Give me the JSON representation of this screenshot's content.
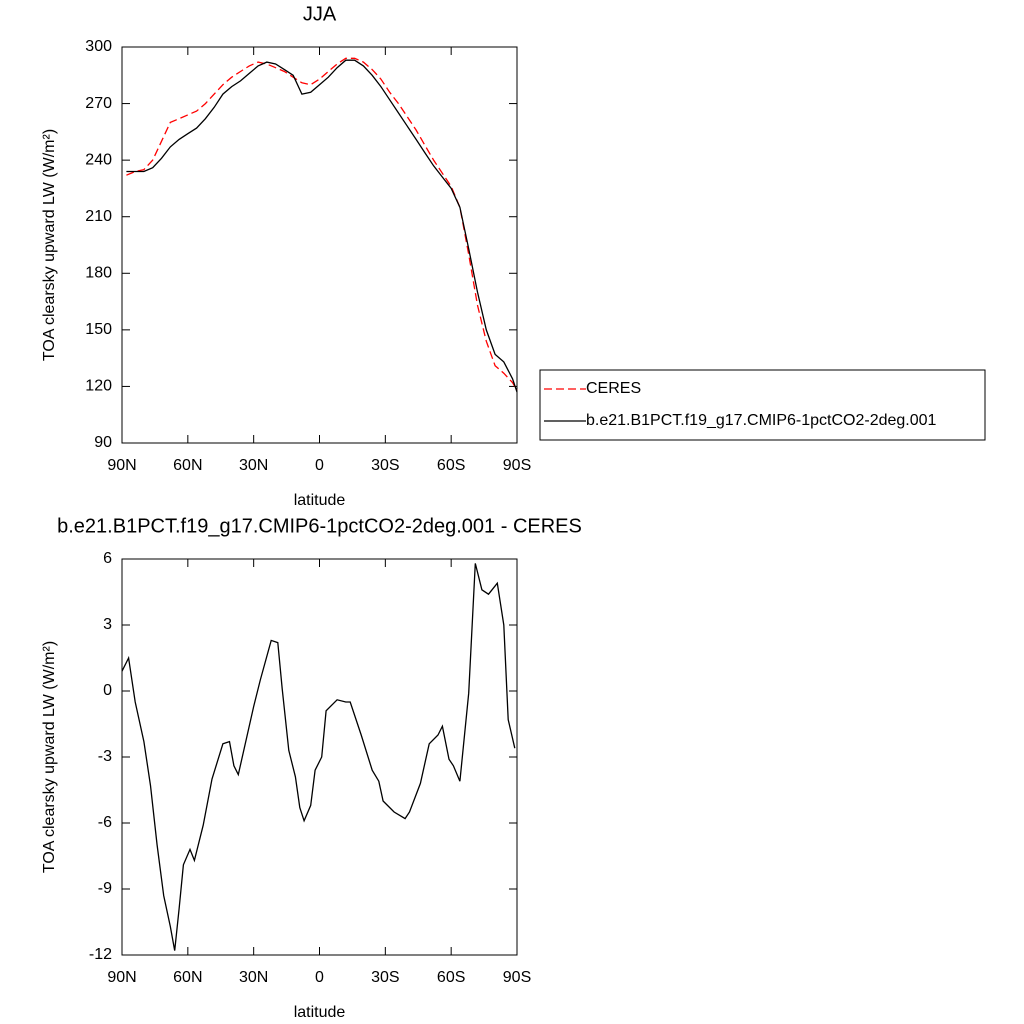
{
  "chart_data": [
    {
      "type": "line",
      "title": "JJA",
      "xlabel": "latitude",
      "ylabel": "TOA clearsky upward LW (W/m²)",
      "x": [
        88,
        84,
        80,
        76,
        72,
        68,
        64,
        60,
        56,
        52,
        48,
        44,
        40,
        36,
        32,
        28,
        24,
        20,
        16,
        12,
        8,
        4,
        0,
        -4,
        -8,
        -12,
        -16,
        -20,
        -24,
        -28,
        -32,
        -36,
        -40,
        -44,
        -48,
        -52,
        -56,
        -60,
        -64,
        -68,
        -72,
        -76,
        -80,
        -84,
        -88,
        -90
      ],
      "series": [
        {
          "name": "CERES",
          "color": "#ff0000",
          "line_style": "dashed",
          "values": [
            232,
            234,
            235,
            240,
            250,
            260,
            262,
            264,
            266,
            270,
            275,
            280,
            284,
            287,
            290,
            292,
            291,
            289,
            287,
            284,
            281,
            280,
            283,
            287,
            291,
            294,
            294,
            292,
            288,
            283,
            276,
            270,
            263,
            256,
            248,
            240,
            233,
            226,
            215,
            190,
            163,
            144,
            131,
            127,
            122,
            118
          ]
        },
        {
          "name": "b.e21.B1PCT.f19_g17.CMIP6-1pctCO2-2deg.001",
          "color": "#000000",
          "line_style": "solid",
          "values": [
            234,
            234,
            234,
            236,
            241,
            247,
            251,
            254,
            257,
            262,
            268,
            275,
            279,
            282,
            286,
            290,
            292,
            291,
            288,
            285,
            275,
            276,
            280,
            284,
            289,
            293,
            293,
            290,
            285,
            279,
            272,
            265,
            258,
            251,
            244,
            237,
            231,
            225,
            215,
            193,
            170,
            150,
            137,
            133,
            124,
            117
          ]
        }
      ],
      "xlim": [
        90,
        -90
      ],
      "xticks": [
        {
          "value": 90,
          "label": "90N"
        },
        {
          "value": 60,
          "label": "60N"
        },
        {
          "value": 30,
          "label": "30N"
        },
        0,
        {
          "value": -30,
          "label": "30S"
        },
        {
          "value": -60,
          "label": "60S"
        },
        {
          "value": -90,
          "label": "90S"
        }
      ],
      "ylim": [
        90,
        300
      ],
      "yticks": [
        90,
        120,
        150,
        180,
        210,
        240,
        270,
        300
      ],
      "legend": "right"
    },
    {
      "type": "line",
      "title": "b.e21.B1PCT.f19_g17.CMIP6-1pctCO2-2deg.001 - CERES",
      "xlabel": "latitude",
      "ylabel": "TOA clearsky upward LW (W/m²)",
      "x": [
        90,
        87,
        84,
        80,
        77,
        74,
        71,
        68,
        66,
        64,
        62,
        59,
        57,
        53,
        49,
        44,
        41,
        39,
        37,
        30,
        27,
        22,
        19,
        17,
        14,
        11,
        9,
        7,
        4,
        2,
        -1,
        -3,
        -8,
        -12,
        -14,
        -19,
        -24,
        -27,
        -29,
        -34,
        -39,
        -41,
        -46,
        -50,
        -54,
        -56,
        -59,
        -61,
        -64,
        -68,
        -71,
        -74,
        -77,
        -81,
        -84,
        -86,
        -89
      ],
      "color": "#000000",
      "values": [
        0.9,
        1.5,
        -0.5,
        -2.3,
        -4.3,
        -7.0,
        -9.3,
        -10.7,
        -11.8,
        -9.9,
        -7.9,
        -7.2,
        -7.7,
        -6.1,
        -4.0,
        -2.4,
        -2.3,
        -3.4,
        -3.8,
        -0.7,
        0.5,
        2.3,
        2.2,
        0.1,
        -2.7,
        -3.9,
        -5.3,
        -5.9,
        -5.2,
        -3.6,
        -3.0,
        -0.9,
        -0.4,
        -0.5,
        -0.5,
        -2.0,
        -3.6,
        -4.1,
        -5.0,
        -5.5,
        -5.8,
        -5.5,
        -4.2,
        -2.4,
        -2.0,
        -1.6,
        -3.1,
        -3.4,
        -4.1,
        -0.1,
        5.8,
        4.6,
        4.4,
        4.9,
        3.0,
        -1.3,
        -2.6
      ],
      "xlim": [
        90,
        -90
      ],
      "xticks": [
        {
          "value": 90,
          "label": "90N"
        },
        {
          "value": 60,
          "label": "60N"
        },
        {
          "value": 30,
          "label": "30N"
        },
        0,
        {
          "value": -30,
          "label": "30S"
        },
        {
          "value": -60,
          "label": "60S"
        },
        {
          "value": -90,
          "label": "90S"
        }
      ],
      "ylim": [
        -12,
        6
      ],
      "yticks": [
        -12,
        -9,
        -6,
        -3,
        0,
        3,
        6
      ]
    }
  ]
}
